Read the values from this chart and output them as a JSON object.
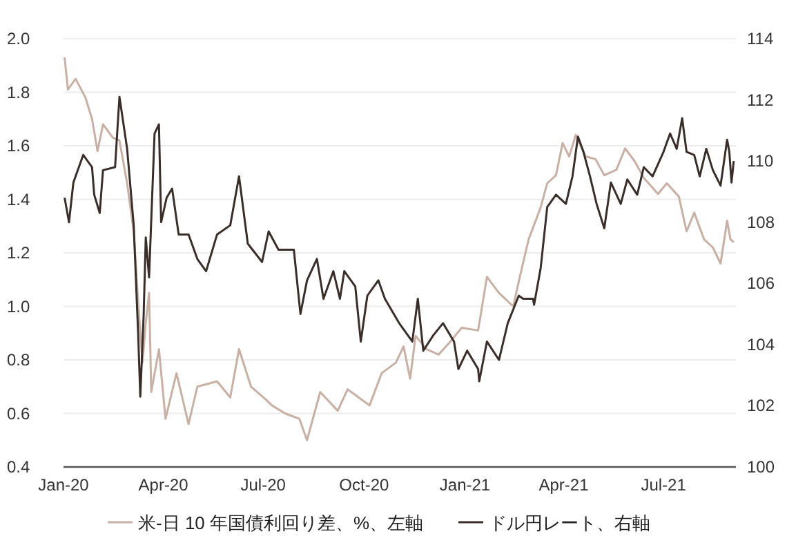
{
  "chart_data": {
    "type": "line",
    "xlim": [
      "2020-01-01",
      "2021-09-05"
    ],
    "xticks": [
      {
        "value": "2020-01-01",
        "label": "Jan-20"
      },
      {
        "value": "2020-04-01",
        "label": "Apr-20"
      },
      {
        "value": "2020-07-01",
        "label": "Jul-20"
      },
      {
        "value": "2020-10-01",
        "label": "Oct-20"
      },
      {
        "value": "2021-01-01",
        "label": "Jan-21"
      },
      {
        "value": "2021-04-01",
        "label": "Apr-21"
      },
      {
        "value": "2021-07-01",
        "label": "Jul-21"
      }
    ],
    "ylim": [
      0.4,
      2.0
    ],
    "yticks": [
      0.4,
      0.6,
      0.8,
      {
        "value": 1.0,
        "label": "1.0"
      },
      1.2,
      1.4,
      1.6,
      1.8,
      {
        "value": 2.0,
        "label": "2.0"
      }
    ],
    "y2lim": [
      100,
      114
    ],
    "y2ticks": [
      100,
      102,
      104,
      106,
      108,
      110,
      112,
      114
    ],
    "grid": "y",
    "legend": "bottom",
    "series": [
      {
        "name": "米-日 10 年国債利回り差、%、左軸",
        "color": "#c8b0a5",
        "x": [
          "2020-01-02",
          "2020-01-05",
          "2020-01-12",
          "2020-01-21",
          "2020-01-27",
          "2020-02-01",
          "2020-02-06",
          "2020-02-15",
          "2020-02-21",
          "2020-02-28",
          "2020-03-05",
          "2020-03-09",
          "2020-03-13",
          "2020-03-16",
          "2020-03-19",
          "2020-03-21",
          "2020-03-28",
          "2020-04-03",
          "2020-04-13",
          "2020-04-24",
          "2020-05-02",
          "2020-05-20",
          "2020-06-01",
          "2020-06-09",
          "2020-06-20",
          "2020-07-04",
          "2020-07-09",
          "2020-07-21",
          "2020-08-03",
          "2020-08-10",
          "2020-08-22",
          "2020-09-07",
          "2020-09-16",
          "2020-09-26",
          "2020-10-06",
          "2020-10-17",
          "2020-10-30",
          "2020-11-06",
          "2020-11-12",
          "2020-11-17",
          "2020-11-27",
          "2020-12-08",
          "2020-12-19",
          "2020-12-29",
          "2021-01-13",
          "2021-01-21",
          "2021-02-01",
          "2021-02-14",
          "2021-02-20",
          "2021-02-28",
          "2021-03-11",
          "2021-03-17",
          "2021-03-25",
          "2021-03-31",
          "2021-04-06",
          "2021-04-12",
          "2021-04-21",
          "2021-04-30",
          "2021-05-08",
          "2021-05-19",
          "2021-05-27",
          "2021-06-05",
          "2021-06-13",
          "2021-06-26",
          "2021-07-04",
          "2021-07-15",
          "2021-07-22",
          "2021-07-29",
          "2021-08-07",
          "2021-08-15",
          "2021-08-22",
          "2021-08-28",
          "2021-08-31",
          "2021-09-03"
        ],
        "values": [
          1.93,
          1.81,
          1.85,
          1.78,
          1.7,
          1.58,
          1.68,
          1.63,
          1.62,
          1.46,
          1.28,
          1.02,
          0.79,
          0.94,
          1.05,
          0.68,
          0.84,
          0.58,
          0.75,
          0.56,
          0.7,
          0.72,
          0.66,
          0.84,
          0.7,
          0.65,
          0.63,
          0.6,
          0.58,
          0.5,
          0.68,
          0.61,
          0.69,
          0.66,
          0.63,
          0.75,
          0.79,
          0.85,
          0.73,
          0.89,
          0.84,
          0.82,
          0.87,
          0.92,
          0.91,
          1.11,
          1.05,
          1.0,
          1.11,
          1.25,
          1.37,
          1.46,
          1.49,
          1.61,
          1.56,
          1.64,
          1.56,
          1.55,
          1.49,
          1.51,
          1.59,
          1.54,
          1.48,
          1.42,
          1.46,
          1.41,
          1.28,
          1.35,
          1.25,
          1.22,
          1.16,
          1.32,
          1.25,
          1.24
        ]
      },
      {
        "name": "ドル円レート、右軸",
        "color": "#3a2e2a",
        "axis": "y2",
        "x": [
          "2020-01-02",
          "2020-01-06",
          "2020-01-10",
          "2020-01-19",
          "2020-01-27",
          "2020-01-29",
          "2020-02-03",
          "2020-02-06",
          "2020-02-17",
          "2020-02-21",
          "2020-02-28",
          "2020-03-05",
          "2020-03-09",
          "2020-03-11",
          "2020-03-14",
          "2020-03-16",
          "2020-03-19",
          "2020-03-24",
          "2020-03-28",
          "2020-03-30",
          "2020-04-04",
          "2020-04-09",
          "2020-04-15",
          "2020-04-24",
          "2020-05-02",
          "2020-05-10",
          "2020-05-20",
          "2020-06-01",
          "2020-06-09",
          "2020-06-17",
          "2020-06-30",
          "2020-07-06",
          "2020-07-15",
          "2020-07-29",
          "2020-08-04",
          "2020-08-10",
          "2020-08-19",
          "2020-08-25",
          "2020-09-03",
          "2020-09-09",
          "2020-09-13",
          "2020-09-23",
          "2020-09-28",
          "2020-10-04",
          "2020-10-14",
          "2020-10-20",
          "2020-11-02",
          "2020-11-08",
          "2020-11-14",
          "2020-11-19",
          "2020-11-24",
          "2020-12-03",
          "2020-12-12",
          "2020-12-22",
          "2020-12-26",
          "2021-01-03",
          "2021-01-13",
          "2021-01-14",
          "2021-01-21",
          "2021-02-01",
          "2021-02-09",
          "2021-02-19",
          "2021-02-23",
          "2021-03-04",
          "2021-03-05",
          "2021-03-11",
          "2021-03-17",
          "2021-03-25",
          "2021-04-03",
          "2021-04-09",
          "2021-04-14",
          "2021-04-19",
          "2021-04-25",
          "2021-05-01",
          "2021-05-08",
          "2021-05-14",
          "2021-05-23",
          "2021-05-29",
          "2021-06-07",
          "2021-06-13",
          "2021-06-21",
          "2021-07-01",
          "2021-07-07",
          "2021-07-13",
          "2021-07-18",
          "2021-07-22",
          "2021-07-29",
          "2021-08-03",
          "2021-08-09",
          "2021-08-15",
          "2021-08-22",
          "2021-08-28",
          "2021-08-30",
          "2021-09-01",
          "2021-09-03"
        ],
        "values": [
          108.8,
          108.0,
          109.3,
          110.2,
          109.8,
          108.9,
          108.3,
          109.7,
          109.8,
          112.1,
          110.4,
          107.9,
          104.4,
          102.3,
          104.9,
          107.5,
          106.2,
          110.9,
          111.2,
          108.0,
          108.8,
          109.1,
          107.6,
          107.6,
          106.8,
          106.4,
          107.6,
          107.9,
          109.5,
          107.3,
          106.7,
          107.7,
          107.1,
          107.1,
          105.0,
          106.1,
          106.8,
          105.5,
          106.4,
          105.5,
          106.4,
          105.9,
          104.1,
          105.6,
          106.1,
          105.5,
          104.7,
          104.4,
          104.1,
          105.5,
          103.8,
          104.3,
          104.7,
          104.1,
          103.2,
          103.8,
          103.2,
          102.8,
          104.1,
          103.5,
          104.7,
          105.6,
          105.5,
          105.5,
          105.3,
          106.5,
          108.5,
          108.9,
          108.6,
          109.5,
          110.8,
          110.3,
          109.5,
          108.6,
          107.8,
          109.3,
          108.6,
          109.4,
          108.9,
          109.8,
          109.5,
          110.3,
          110.9,
          110.4,
          111.4,
          110.3,
          110.2,
          109.5,
          110.4,
          109.7,
          109.2,
          110.7,
          110.3,
          109.3,
          110.0
        ]
      }
    ]
  }
}
